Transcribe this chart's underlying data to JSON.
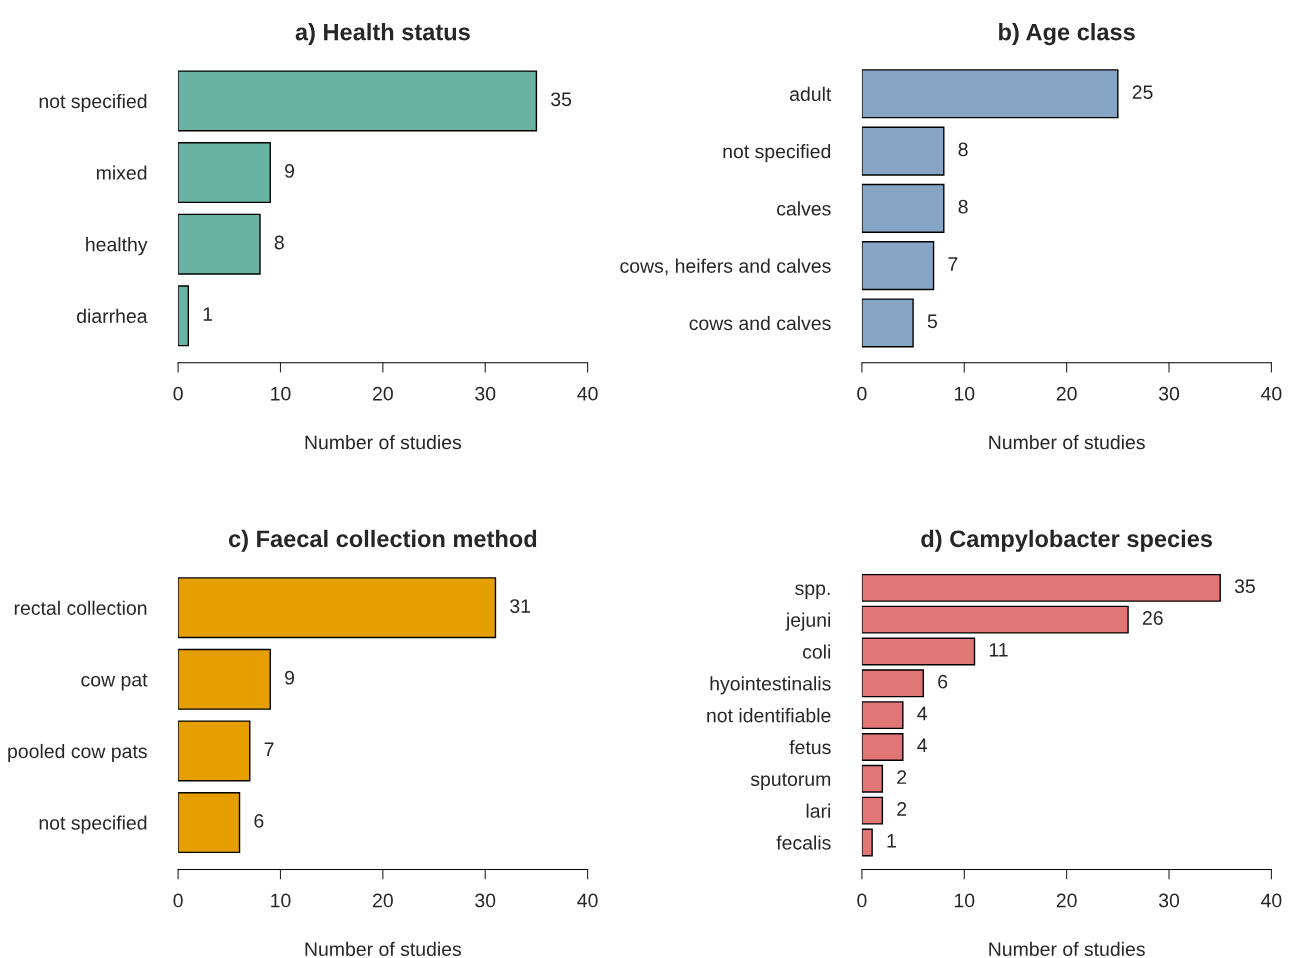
{
  "chart_data": [
    {
      "type": "bar",
      "orientation": "horizontal",
      "title": "a) Health status",
      "xlabel": "Number of studies",
      "categories": [
        "not specified",
        "mixed",
        "healthy",
        "diarrhea"
      ],
      "values": [
        35,
        9,
        8,
        1
      ],
      "color": "#69b3a2",
      "xlim": [
        0,
        40
      ],
      "xticks": [
        0,
        10,
        20,
        30,
        40
      ],
      "data_labels": true,
      "grid": false,
      "legend": false
    },
    {
      "type": "bar",
      "orientation": "horizontal",
      "title": "b) Age class",
      "xlabel": "Number of studies",
      "categories": [
        "adult",
        "not specified",
        "calves",
        "cows, heifers and calves",
        "cows and calves"
      ],
      "values": [
        25,
        8,
        8,
        7,
        5
      ],
      "color": "#86a5c5",
      "xlim": [
        0,
        40
      ],
      "xticks": [
        0,
        10,
        20,
        30,
        40
      ],
      "data_labels": true,
      "grid": false,
      "legend": false
    },
    {
      "type": "bar",
      "orientation": "horizontal",
      "title": "c) Faecal collection method",
      "xlabel": "Number of studies",
      "categories": [
        "rectal collection",
        "cow pat",
        "pooled cow pats",
        "not specified"
      ],
      "values": [
        31,
        9,
        7,
        6
      ],
      "color": "#e69f00",
      "xlim": [
        0,
        40
      ],
      "xticks": [
        0,
        10,
        20,
        30,
        40
      ],
      "data_labels": true,
      "grid": false,
      "legend": false
    },
    {
      "type": "bar",
      "orientation": "horizontal",
      "title": "d) Campylobacter species",
      "xlabel": "Number of studies",
      "categories": [
        "spp.",
        "jejuni",
        "coli",
        "hyointestinalis",
        "not identifiable",
        "fetus",
        "sputorum",
        "lari",
        "fecalis"
      ],
      "values": [
        35,
        26,
        11,
        6,
        4,
        4,
        2,
        2,
        1
      ],
      "color": "#e07676",
      "xlim": [
        0,
        40
      ],
      "xticks": [
        0,
        10,
        20,
        30,
        40
      ],
      "data_labels": true,
      "grid": false,
      "legend": false
    }
  ]
}
